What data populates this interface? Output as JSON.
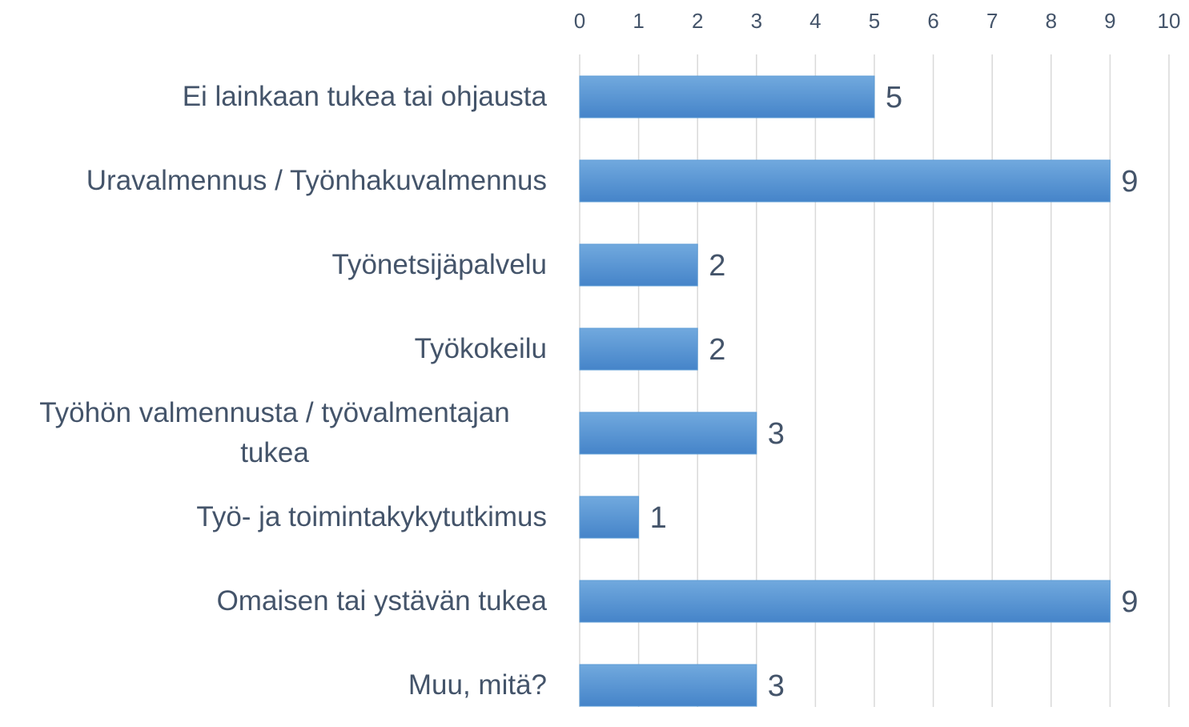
{
  "chart_data": {
    "type": "bar",
    "orientation": "horizontal",
    "categories": [
      "Ei lainkaan tukea tai ohjausta",
      "Uravalmennus / Työnhakuvalmennus",
      "Työnetsijäpalvelu",
      "Työkokeilu",
      "Työhön valmennusta / työvalmentajan tukea",
      "Työ- ja toimintakykytutkimus",
      "Omaisen tai ystävän tukea",
      "Muu, mitä?"
    ],
    "values": [
      5,
      9,
      2,
      2,
      3,
      1,
      9,
      3
    ],
    "color": "#5b9bd5",
    "xlim": [
      0,
      10
    ],
    "xticks": [
      0,
      1,
      2,
      3,
      4,
      5,
      6,
      7,
      8,
      9,
      10
    ],
    "grid": true
  }
}
